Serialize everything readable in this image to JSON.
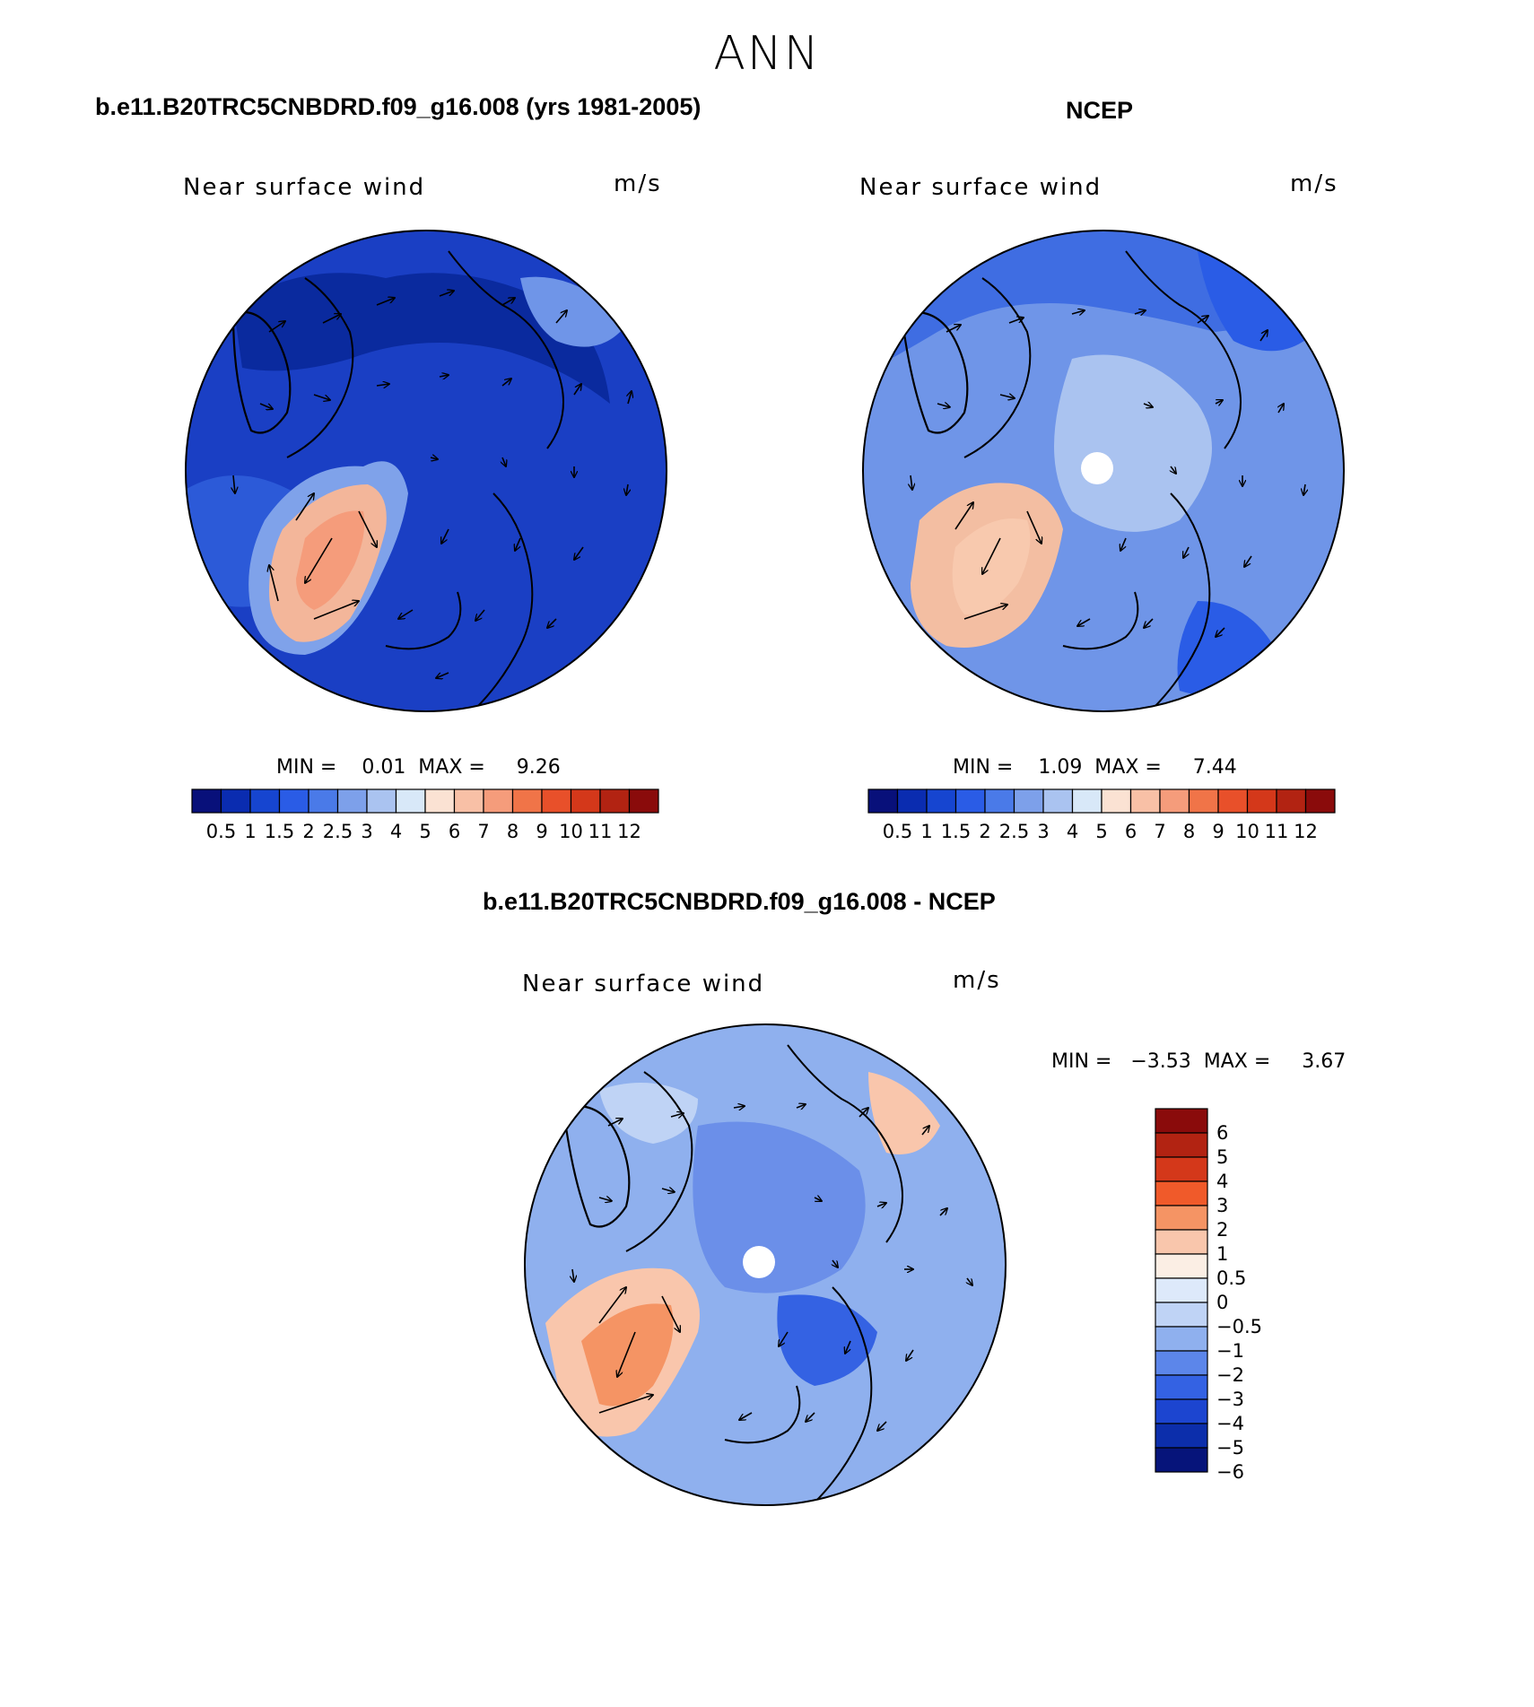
{
  "title": "ANN",
  "colors": {
    "seq": [
      "#08107a",
      "#0a2cb0",
      "#1645d0",
      "#2a5ce6",
      "#4a7ae8",
      "#7da0ea",
      "#aac3f0",
      "#d8e8f8",
      "#fbe2d3",
      "#f8c0a6",
      "#f59c7b",
      "#f07448",
      "#e8502a",
      "#d4381a",
      "#b22312",
      "#8a0b0b"
    ],
    "diff": [
      "#8a0b0b",
      "#b22312",
      "#d4381a",
      "#f05a2a",
      "#f59464",
      "#f9c6ac",
      "#fbeee4",
      "#dde9fa",
      "#bfd3f5",
      "#8fb0ee",
      "#5c86ea",
      "#3462e3",
      "#1c45d0",
      "#0c2eab",
      "#06147a"
    ],
    "land": "#000000"
  },
  "panels": {
    "model": {
      "heading": "b.e11.B20TRC5CNBDRD.f09_g16.008 (yrs 1981-2005)",
      "left_label": "Near surface wind",
      "units": "m/s",
      "stats": "MIN =    0.01  MAX =     9.26",
      "colorbar_labels": [
        "0.5",
        "1",
        "1.5",
        "2",
        "2.5",
        "3",
        "4",
        "5",
        "6",
        "7",
        "8",
        "9",
        "10",
        "11",
        "12"
      ]
    },
    "obs": {
      "heading": "NCEP",
      "left_label": "Near surface wind",
      "units": "m/s",
      "stats": "MIN =    1.09  MAX =     7.44",
      "colorbar_labels": [
        "0.5",
        "1",
        "1.5",
        "2",
        "2.5",
        "3",
        "4",
        "5",
        "6",
        "7",
        "8",
        "9",
        "10",
        "11",
        "12"
      ]
    },
    "diff": {
      "heading": "b.e11.B20TRC5CNBDRD.f09_g16.008 - NCEP",
      "left_label": "Near surface wind",
      "units": "m/s",
      "stats": "MIN =   −3.53  MAX =     3.67",
      "colorbar_labels": [
        "6",
        "5",
        "4",
        "3",
        "2",
        "1",
        "0.5",
        "0",
        "−0.5",
        "−1",
        "−2",
        "−3",
        "−4",
        "−5",
        "−6"
      ]
    }
  }
}
